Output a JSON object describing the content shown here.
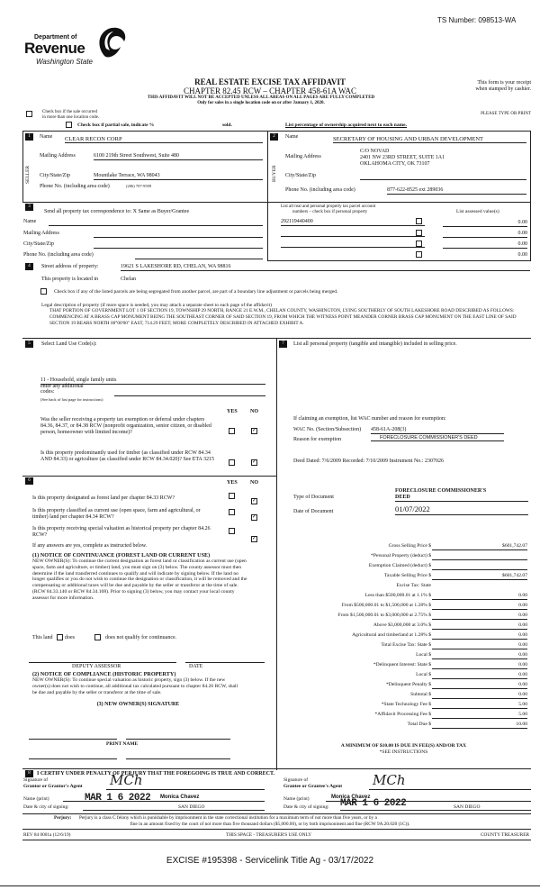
{
  "ts_number": "TS Number:  098513-WA",
  "logo": {
    "line1": "Department of",
    "line2": "Revenue",
    "line3": "Washington State"
  },
  "header": {
    "title": "REAL ESTATE EXCISE TAX AFFIDAVIT",
    "chapter": "CHAPTER 82.45 RCW – CHAPTER 458-61A WAC",
    "warning": "THIS AFFIDAVIT WILL NOT BE ACCEPTED UNLESS ALL AREAS ON ALL PAGES ARE FULLY COMPLETED",
    "only_for": "Only for sales in a single location code on or after January 1, 2020.",
    "receipt1": "This form is your receipt",
    "receipt2": "when stamped by cashier.",
    "please": "PLEASE TYPE OR PRINT"
  },
  "top": {
    "multi_loc1": "Check box if the sale occurred",
    "multi_loc2": "in more than one location code.",
    "partial": "Check box if partial sale, indicate %",
    "sold": "sold.",
    "list_pct": "List percentage of ownership acquired next to each name."
  },
  "seller": {
    "num": "1",
    "side": "SELLER",
    "name_label": "Name",
    "name": "CLEAR RECON CORP",
    "mail_label": "Mailing Address",
    "mail": "6100 219th Street Southwest, Suite 480",
    "city_label": "City/State/Zip",
    "city": "Mountlake Terrace, WA 98043",
    "phone_label": "Phone No. (including area code)",
    "phone": "(206) 707-9599"
  },
  "buyer": {
    "num": "2",
    "side": "BUYER",
    "name_label": "Name",
    "name": "SECRETARY OF HOUSING AND URBAN DEVELOPMENT",
    "mail_label": "Mailing Address",
    "mail1": "C/O NOVAD",
    "mail2": "2401 NW 23RD STREET, SUITE 1A1",
    "mail3": "OKLAHOMA CITY, OK 73107",
    "city_label": "City/State/Zip",
    "phone_label": "Phone No. (including area code)",
    "phone": "877-622-8525 ext 289036"
  },
  "sec3": {
    "num": "3",
    "send": "Send all property tax correspondence to:   X   Same as Buyer/Grantee",
    "name": "Name",
    "mail": "Mailing Address",
    "city": "City/State/Zip",
    "phone": "Phone No. (including area code)"
  },
  "parcels": {
    "header1": "List all real and personal property tax parcel account",
    "header2": "numbers – check box if personal property",
    "assessed": "List assessed value(s)",
    "rows": [
      {
        "parcel": "292119440400",
        "value": "0.00"
      },
      {
        "parcel": "",
        "value": "0.00"
      },
      {
        "parcel": "",
        "value": "0.00"
      },
      {
        "parcel": "",
        "value": "0.00"
      }
    ]
  },
  "sec4": {
    "num": "4",
    "street_label": "Street address of property:",
    "street": "19621 S LAKESHORE RD, CHELAN, WA 98816",
    "located_label": "This property is located in",
    "located": "Chelan",
    "segregated": "Check box if any of the listed parcels are being segregated from another parcel, are part of a boundary line adjustment or parcels being merged.",
    "legal_label": "Legal description of property (if more space is needed, you may attach a separate sheet to each page of the affidavit)",
    "legal": "THAT PORTION OF GOVERNMENT LOT 1 OF SECTION 19, TOWNSHIP 29 NORTH, RANGE 21 E.W.M., CHELAN COUNTY, WASHINGTON, LYING SOUTHERLY OF SOUTH LAKESHORE ROAD DESCRIBED AS FOLLOWS: COMMENCING AT A BRASS CAP MONUMENT BEING THE SOUTHEAST CORNER OF SAID SECTION 19, FROM WHICH THE WITNESS POINT MEANDER CORNER BRASS CAP MONUMENT ON THE EAST LINE OF SAID SECTION 19 BEARS NORTH 00°00'00\" EAST, 714.29 FEET; MORE COMPLETELY DESCRIBED IN ATTACHED EXHIBIT A."
  },
  "sec5": {
    "num": "5",
    "label": "Select Land Use Code(s):",
    "code": "11 - Household, single family units",
    "additional": "enter any additional",
    "codes": "codes:",
    "see_back": "(See back of last page for instructions)",
    "yes": "YES",
    "no": "NO",
    "q1": "Was the seller receiving a property tax exemption or deferral under chapters 84.36, 84.37, or 84.38 RCW (nonprofit organization, senior citizen, or disabled person, homeowner with limited income)?",
    "q2": "Is this property predominantly used for timber (as classified under RCW 84.34 AND 84.33) or agriculture (as classified under RCW 84.34.020)? See ETA 3215",
    "q1_no": "✓",
    "q2_no": "✓"
  },
  "sec6": {
    "num": "6",
    "yes": "YES",
    "no": "NO",
    "q1": "Is this property designated as forest land per chapter 84.33 RCW?",
    "q2": "Is this property classified as current use (open space, farm and agricultural, or timber) land per chapter 84.34 RCW?",
    "q3": "Is this property receiving special valuation as historical property per chapter 84.26 RCW?",
    "check": "✓",
    "if_yes": "If any answers are yes, complete as instructed below.",
    "n1_title": "(1) NOTICE OF CONTINUANCE (FOREST LAND OR CURRENT USE)",
    "n1_text": "NEW OWNER(S): To continue the current designation as forest land or classification as current use (open space, farm and agriculture, or timber) land, you must sign on (3) below. The county assessor must then determine if the land transferred continues to qualify and will indicate by signing below. If the land no longer qualifies or you do not wish to continue the designation or classification, it will be removed and the compensating or additional taxes will be due and payable by the seller or transferor at the time of sale. (RCW 84.33.140 or RCW 84.34.108). Prior to signing (3) below, you may contact your local county assessor for more information.",
    "this_land": "This land",
    "does": "does",
    "does_not": "does not qualify for continuance.",
    "deputy": "DEPUTY ASSESSOR",
    "date": "DATE",
    "n2_title": "(2) NOTICE OF COMPLIANCE (HISTORIC PROPERTY)",
    "n2_text": "NEW OWNER(S): To continue special valuation as historic property, sign (3) below. If the new owner(s) does not wish to continue, all additional tax calculated pursuant to chapter 84.26 RCW, shall be due and payable by the seller or transferor at the time of sale.",
    "n3_title": "(3) NEW OWNER(S) SIGNATURE",
    "print_name": "PRINT NAME"
  },
  "sec7": {
    "num": "7",
    "label": "List all personal property (tangible and intangible) included in selling price.",
    "exempt_label": "If claiming an exemption, list WAC number and reason for exemption:",
    "wac_label": "WAC No. (Section/Subsection)",
    "wac": "458-61A-208(3)",
    "reason_label": "Reason for exemption",
    "reason": "FORECLOSURE COMMISSIONER'S DEED",
    "deed": "Deed Dated: 7/6/2009 Recorded:  7/10/2009 Instrument No.:  2307026",
    "type_label": "Type of Document",
    "type1": "FORECLOSURE COMMISSIONER'S",
    "type2": "DEED",
    "date_label": "Date of Document",
    "date": "01/07/2022"
  },
  "tax": {
    "rows": [
      {
        "label": "Gross Selling Price $",
        "value": "$601,742.07"
      },
      {
        "label": "*Personal Property (deduct) $",
        "value": ""
      },
      {
        "label": "Exemption Claimed (deduct) $",
        "value": ""
      },
      {
        "label": "Taxable Selling Price $",
        "value": "$601,742.07"
      },
      {
        "label": "Excise Tax: State",
        "value": null
      },
      {
        "label": "Less than $500,000.01 at 1.1% $",
        "value": "0.00"
      },
      {
        "label": "From $500,000.01 to $1,500,000 at 1.28% $",
        "value": "0.00"
      },
      {
        "label": "From $1,500,000.01 to $3,000,000 at 2.75% $",
        "value": "0.00"
      },
      {
        "label": "Above $3,000,000 at 3.0% $",
        "value": "0.00"
      },
      {
        "label": "Agricultural and timberland at 1.28% $",
        "value": "0.00"
      },
      {
        "label": "Total Excise Tax: State $",
        "value": "0.00"
      },
      {
        "label": "Local $",
        "value": "0.00"
      },
      {
        "label": "*Delinquent Interest: State $",
        "value": "0.00"
      },
      {
        "label": "Local $",
        "value": "0.00"
      },
      {
        "label": "*Delinquent Penalty $",
        "value": "0.00"
      },
      {
        "label": "Subtotal $",
        "value": "0.00"
      },
      {
        "label": "*State Technology Fee $",
        "value": "5.00"
      },
      {
        "label": "*Affidavit Processing Fee $",
        "value": "5.00"
      },
      {
        "label": "Total Due $",
        "value": "10.00"
      }
    ],
    "minimum": "A MINIMUM OF $10.00 IS DUE IN FEE(S) AND/OR TAX",
    "see": "*SEE INSTRUCTIONS"
  },
  "sec8": {
    "num": "8",
    "certify": "I CERTIFY UNDER PENALTY OF PERJURY THAT THE FOREGOING IS TRUE AND CORRECT.",
    "sig_of": "Signature of",
    "grantor": "Grantor or Grantor's Agent",
    "grantee": "Grantee or Grantee's Agent",
    "name_print": "Name (print)",
    "date_city": "Date & city of signing:",
    "left_name": "Monica Chavez",
    "left_date": "MAR 1 6 2022",
    "left_city": "SAN DIEGO",
    "right_name": "Monica Chavez",
    "right_date": "MAR 1 6 2022",
    "right_city": "SAN DIEGO",
    "signature": "MCh"
  },
  "perjury": {
    "label": "Perjury:",
    "text1": "Perjury is a class C felony which is punishable by imprisonment in the state correctional institution for a maximum term of not more than five years, or by a",
    "text2": "fine in an amount fixed by the court of not more than five thousand dollars ($5,000.00), or by both imprisonment and fine (RCW 9A.20.020 (1C))."
  },
  "footer": {
    "rev": "REV 84 0001a (12/6/19)",
    "treasurer_use": "THIS SPACE - TREASURER'S USE ONLY",
    "county": "COUNTY TREASURER",
    "excise": "EXCISE #195398 - Servicelink Title Ag - 03/17/2022"
  }
}
